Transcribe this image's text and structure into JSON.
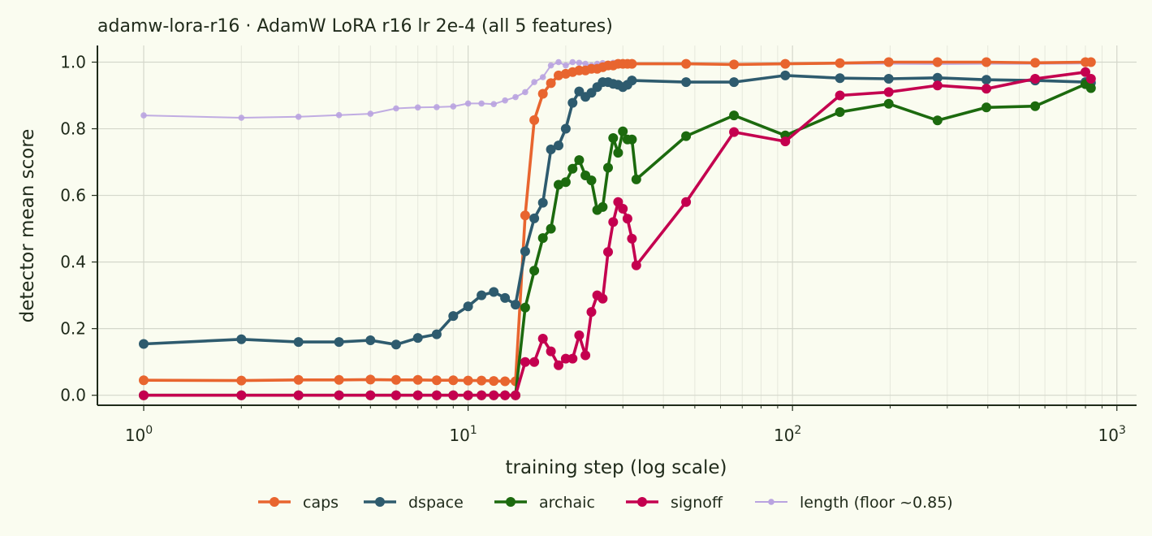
{
  "chart_data": {
    "type": "line",
    "title": "adamw-lora-r16 · AdamW LoRA r16 lr 2e-4 (all 5 features)",
    "xlabel": "training step (log scale)",
    "ylabel": "detector mean score",
    "xscale": "log",
    "xlim": [
      0.72,
      1150
    ],
    "ylim": [
      -0.03,
      1.05
    ],
    "x_ticks": [
      1,
      10,
      100,
      1000
    ],
    "x_tick_labels": [
      {
        "base": "10",
        "exp": "0"
      },
      {
        "base": "10",
        "exp": "1"
      },
      {
        "base": "10",
        "exp": "2"
      },
      {
        "base": "10",
        "exp": "3"
      }
    ],
    "y_ticks": [
      0.0,
      0.2,
      0.4,
      0.6,
      0.8,
      1.0
    ],
    "y_tick_labels": [
      "0.0",
      "0.2",
      "0.4",
      "0.6",
      "0.8",
      "1.0"
    ],
    "grid": true,
    "legend_position": "bottom-center",
    "series": [
      {
        "name": "length (floor ~0.85)",
        "color": "#b9a3e0",
        "style": "thin",
        "points": [
          [
            1,
            0.84
          ],
          [
            2,
            0.833
          ],
          [
            3,
            0.836
          ],
          [
            4,
            0.841
          ],
          [
            5,
            0.845
          ],
          [
            6,
            0.861
          ],
          [
            7,
            0.864
          ],
          [
            8,
            0.865
          ],
          [
            9,
            0.867
          ],
          [
            10,
            0.876
          ],
          [
            11,
            0.876
          ],
          [
            12,
            0.874
          ],
          [
            13,
            0.885
          ],
          [
            14,
            0.895
          ],
          [
            15,
            0.91
          ],
          [
            16,
            0.94
          ],
          [
            17,
            0.955
          ],
          [
            18,
            0.99
          ],
          [
            19,
            1.0
          ],
          [
            20,
            0.99
          ],
          [
            21,
            1.0
          ],
          [
            22,
            0.998
          ],
          [
            23,
            0.995
          ],
          [
            24,
            0.99
          ],
          [
            25,
            0.995
          ],
          [
            26,
            0.997
          ],
          [
            27,
            0.995
          ],
          [
            28,
            0.998
          ],
          [
            29,
            0.997
          ],
          [
            30,
            0.998
          ],
          [
            31,
            0.996
          ],
          [
            32,
            0.995
          ],
          [
            47,
            0.994
          ],
          [
            66,
            0.993
          ],
          [
            95,
            0.994
          ],
          [
            140,
            0.995
          ],
          [
            198,
            0.995
          ],
          [
            280,
            0.994
          ],
          [
            396,
            0.995
          ],
          [
            560,
            0.995
          ],
          [
            800,
            0.996
          ],
          [
            832,
            0.996
          ]
        ]
      },
      {
        "name": "caps",
        "color": "#e8652f",
        "style": "thick",
        "points": [
          [
            1,
            0.045
          ],
          [
            2,
            0.044
          ],
          [
            3,
            0.046
          ],
          [
            4,
            0.046
          ],
          [
            5,
            0.047
          ],
          [
            6,
            0.046
          ],
          [
            7,
            0.046
          ],
          [
            8,
            0.045
          ],
          [
            9,
            0.045
          ],
          [
            10,
            0.044
          ],
          [
            11,
            0.044
          ],
          [
            12,
            0.043
          ],
          [
            13,
            0.042
          ],
          [
            14,
            0.042
          ],
          [
            15,
            0.54
          ],
          [
            16,
            0.826
          ],
          [
            17,
            0.905
          ],
          [
            18,
            0.937
          ],
          [
            19,
            0.96
          ],
          [
            20,
            0.965
          ],
          [
            21,
            0.97
          ],
          [
            22,
            0.975
          ],
          [
            23,
            0.975
          ],
          [
            24,
            0.98
          ],
          [
            25,
            0.98
          ],
          [
            26,
            0.985
          ],
          [
            27,
            0.99
          ],
          [
            28,
            0.99
          ],
          [
            29,
            0.995
          ],
          [
            30,
            0.995
          ],
          [
            31,
            0.995
          ],
          [
            32,
            0.995
          ],
          [
            47,
            0.995
          ],
          [
            66,
            0.993
          ],
          [
            95,
            0.995
          ],
          [
            140,
            0.997
          ],
          [
            198,
            1.0
          ],
          [
            280,
            1.0
          ],
          [
            396,
            1.0
          ],
          [
            560,
            0.998
          ],
          [
            800,
            1.0
          ],
          [
            832,
            1.0
          ]
        ]
      },
      {
        "name": "dspace",
        "color": "#2e5b6e",
        "style": "thick",
        "points": [
          [
            1,
            0.154
          ],
          [
            2,
            0.168
          ],
          [
            3,
            0.16
          ],
          [
            4,
            0.16
          ],
          [
            5,
            0.165
          ],
          [
            6,
            0.152
          ],
          [
            7,
            0.172
          ],
          [
            8,
            0.183
          ],
          [
            9,
            0.238
          ],
          [
            10,
            0.267
          ],
          [
            11,
            0.3
          ],
          [
            12,
            0.31
          ],
          [
            13,
            0.292
          ],
          [
            14,
            0.272
          ],
          [
            15,
            0.432
          ],
          [
            16,
            0.531
          ],
          [
            17,
            0.578
          ],
          [
            18,
            0.738
          ],
          [
            19,
            0.75
          ],
          [
            20,
            0.8
          ],
          [
            21,
            0.878
          ],
          [
            22,
            0.912
          ],
          [
            23,
            0.896
          ],
          [
            24,
            0.908
          ],
          [
            25,
            0.925
          ],
          [
            26,
            0.94
          ],
          [
            27,
            0.94
          ],
          [
            28,
            0.935
          ],
          [
            29,
            0.932
          ],
          [
            30,
            0.925
          ],
          [
            31,
            0.932
          ],
          [
            32,
            0.945
          ],
          [
            47,
            0.94
          ],
          [
            66,
            0.94
          ],
          [
            95,
            0.96
          ],
          [
            140,
            0.952
          ],
          [
            198,
            0.95
          ],
          [
            280,
            0.953
          ],
          [
            396,
            0.947
          ],
          [
            560,
            0.945
          ],
          [
            800,
            0.94
          ],
          [
            832,
            0.938
          ]
        ]
      },
      {
        "name": "archaic",
        "color": "#1c6a0e",
        "style": "thick",
        "points": [
          [
            1,
            0.0
          ],
          [
            2,
            0.0
          ],
          [
            3,
            0.0
          ],
          [
            4,
            0.0
          ],
          [
            5,
            0.0
          ],
          [
            6,
            0.0
          ],
          [
            7,
            0.0
          ],
          [
            8,
            0.0
          ],
          [
            9,
            0.0
          ],
          [
            10,
            0.0
          ],
          [
            11,
            0.0
          ],
          [
            12,
            0.0
          ],
          [
            13,
            0.0
          ],
          [
            14,
            0.0
          ],
          [
            15,
            0.263
          ],
          [
            16,
            0.374
          ],
          [
            17,
            0.472
          ],
          [
            18,
            0.5
          ],
          [
            19,
            0.632
          ],
          [
            20,
            0.64
          ],
          [
            21,
            0.68
          ],
          [
            22,
            0.706
          ],
          [
            23,
            0.66
          ],
          [
            24,
            0.645
          ],
          [
            25,
            0.556
          ],
          [
            26,
            0.565
          ],
          [
            27,
            0.683
          ],
          [
            28,
            0.772
          ],
          [
            29,
            0.728
          ],
          [
            30,
            0.792
          ],
          [
            31,
            0.768
          ],
          [
            32,
            0.768
          ],
          [
            33,
            0.648
          ],
          [
            47,
            0.778
          ],
          [
            66,
            0.84
          ],
          [
            95,
            0.78
          ],
          [
            140,
            0.85
          ],
          [
            198,
            0.875
          ],
          [
            280,
            0.825
          ],
          [
            396,
            0.864
          ],
          [
            560,
            0.868
          ],
          [
            800,
            0.934
          ],
          [
            832,
            0.922
          ]
        ]
      },
      {
        "name": "signoff",
        "color": "#c4004f",
        "style": "thick",
        "points": [
          [
            1,
            0.0
          ],
          [
            2,
            0.0
          ],
          [
            3,
            0.0
          ],
          [
            4,
            0.0
          ],
          [
            5,
            0.0
          ],
          [
            6,
            0.0
          ],
          [
            7,
            0.0
          ],
          [
            8,
            0.0
          ],
          [
            9,
            0.0
          ],
          [
            10,
            0.0
          ],
          [
            11,
            0.0
          ],
          [
            12,
            0.0
          ],
          [
            13,
            0.0
          ],
          [
            14,
            0.0
          ],
          [
            15,
            0.1
          ],
          [
            16,
            0.1
          ],
          [
            17,
            0.17
          ],
          [
            18,
            0.132
          ],
          [
            19,
            0.09
          ],
          [
            20,
            0.11
          ],
          [
            21,
            0.11
          ],
          [
            22,
            0.18
          ],
          [
            23,
            0.12
          ],
          [
            24,
            0.25
          ],
          [
            25,
            0.3
          ],
          [
            26,
            0.29
          ],
          [
            27,
            0.43
          ],
          [
            28,
            0.52
          ],
          [
            29,
            0.58
          ],
          [
            30,
            0.56
          ],
          [
            31,
            0.53
          ],
          [
            32,
            0.47
          ],
          [
            33,
            0.39
          ],
          [
            47,
            0.58
          ],
          [
            66,
            0.79
          ],
          [
            95,
            0.762
          ],
          [
            140,
            0.9
          ],
          [
            198,
            0.91
          ],
          [
            280,
            0.93
          ],
          [
            396,
            0.92
          ],
          [
            560,
            0.95
          ],
          [
            800,
            0.97
          ],
          [
            832,
            0.95
          ]
        ]
      }
    ],
    "legend": [
      {
        "label": "caps",
        "color": "#e8652f",
        "style": "thick"
      },
      {
        "label": "dspace",
        "color": "#2e5b6e",
        "style": "thick"
      },
      {
        "label": "archaic",
        "color": "#1c6a0e",
        "style": "thick"
      },
      {
        "label": "signoff",
        "color": "#c4004f",
        "style": "thick"
      },
      {
        "label": "length (floor ~0.85)",
        "color": "#b9a3e0",
        "style": "thin"
      }
    ]
  }
}
